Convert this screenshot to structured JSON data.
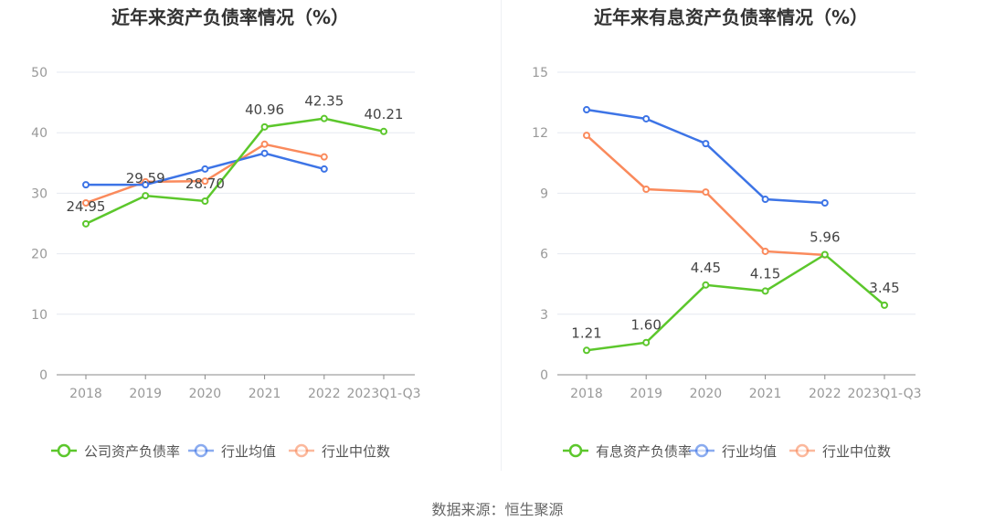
{
  "source": "数据来源：恒生聚源",
  "colors": {
    "company": "#5cc72c",
    "avg": "#3d74e6",
    "median": "#fa8a5c",
    "grid": "#e6e9f0",
    "axis": "#999999",
    "label": "#444444"
  },
  "chart_data": [
    {
      "type": "line",
      "title": "近年来资产负债率情况（%）",
      "categories": [
        "2018",
        "2019",
        "2020",
        "2021",
        "2022",
        "2023Q1-Q3"
      ],
      "ylim": [
        0,
        50
      ],
      "yticks": [
        0,
        10,
        20,
        30,
        40,
        50
      ],
      "series": [
        {
          "name": "公司资产负债率",
          "key": "company",
          "values": [
            24.95,
            29.59,
            28.7,
            40.96,
            42.35,
            40.21
          ],
          "labels": [
            "24.95",
            "29.59",
            "28.70",
            "40.96",
            "42.35",
            "40.21"
          ]
        },
        {
          "name": "行业均值",
          "key": "avg",
          "values": [
            31.4,
            31.4,
            34.0,
            36.6,
            34.0,
            null
          ]
        },
        {
          "name": "行业中位数",
          "key": "median",
          "values": [
            28.4,
            31.9,
            32.0,
            38.1,
            36.0,
            null
          ]
        }
      ],
      "legend": "bottom"
    },
    {
      "type": "line",
      "title": "近年来有息资产负债率情况（%）",
      "categories": [
        "2018",
        "2019",
        "2020",
        "2021",
        "2022",
        "2023Q1-Q3"
      ],
      "ylim": [
        0,
        15
      ],
      "yticks": [
        0,
        3,
        6,
        9,
        12,
        15
      ],
      "series": [
        {
          "name": "有息资产负债率",
          "key": "company",
          "values": [
            1.21,
            1.6,
            4.45,
            4.15,
            5.96,
            3.45
          ],
          "labels": [
            "1.21",
            "1.60",
            "4.45",
            "4.15",
            "5.96",
            "3.45"
          ]
        },
        {
          "name": "行业均值",
          "key": "avg",
          "values": [
            13.14,
            12.69,
            11.46,
            8.7,
            8.52,
            null
          ]
        },
        {
          "name": "行业中位数",
          "key": "median",
          "values": [
            11.87,
            9.2,
            9.06,
            6.12,
            5.94,
            null
          ]
        }
      ],
      "legend": "bottom"
    }
  ]
}
